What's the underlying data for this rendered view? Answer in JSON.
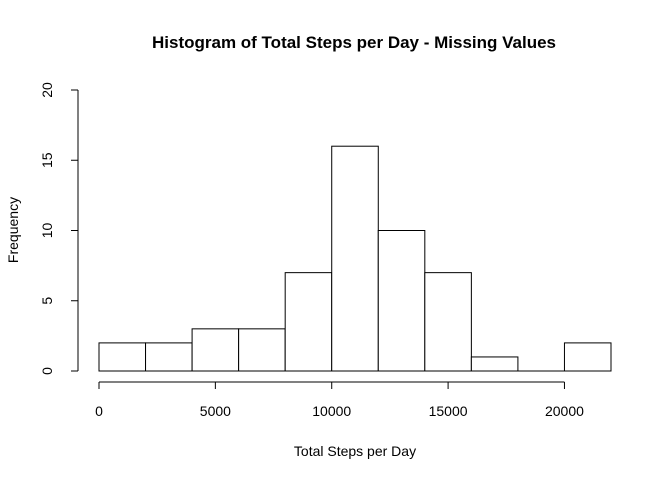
{
  "chart_data": {
    "type": "bar",
    "title": "Histogram of Total Steps per Day - Missing Values",
    "xlabel": "Total Steps per Day",
    "ylabel": "Frequency",
    "bins": [
      {
        "start": 0,
        "end": 2000,
        "count": 2
      },
      {
        "start": 2000,
        "end": 4000,
        "count": 2
      },
      {
        "start": 4000,
        "end": 6000,
        "count": 3
      },
      {
        "start": 6000,
        "end": 8000,
        "count": 3
      },
      {
        "start": 8000,
        "end": 10000,
        "count": 7
      },
      {
        "start": 10000,
        "end": 12000,
        "count": 16
      },
      {
        "start": 12000,
        "end": 14000,
        "count": 10
      },
      {
        "start": 14000,
        "end": 16000,
        "count": 7
      },
      {
        "start": 16000,
        "end": 18000,
        "count": 1
      },
      {
        "start": 18000,
        "end": 20000,
        "count": 0
      },
      {
        "start": 20000,
        "end": 22000,
        "count": 2
      }
    ],
    "xlim": [
      0,
      22000
    ],
    "ylim": [
      0,
      20
    ],
    "x_ticks": [
      "0",
      "5000",
      "10000",
      "15000",
      "20000"
    ],
    "y_ticks": [
      "0",
      "5",
      "10",
      "15",
      "20"
    ],
    "grid": false,
    "legend": "none"
  }
}
